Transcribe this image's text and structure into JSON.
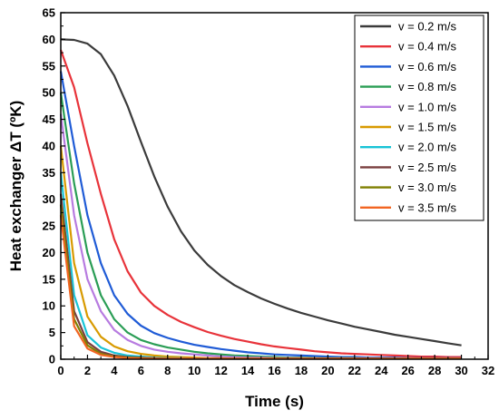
{
  "chart_data": {
    "type": "line",
    "title": "",
    "xlabel": "Time (s)",
    "ylabel": "Heat exchanger ΔT (ºK)",
    "xlim": [
      0,
      32
    ],
    "ylim": [
      0,
      65
    ],
    "x_ticks": [
      0,
      2,
      4,
      6,
      8,
      10,
      12,
      14,
      16,
      18,
      20,
      22,
      24,
      26,
      28,
      30,
      32
    ],
    "y_ticks": [
      0,
      5,
      10,
      15,
      20,
      25,
      30,
      35,
      40,
      45,
      50,
      55,
      60,
      65
    ],
    "grid": false,
    "legend_position": "top-right",
    "x": [
      0,
      1,
      2,
      3,
      4,
      5,
      6,
      7,
      8,
      9,
      10,
      11,
      12,
      13,
      14,
      15,
      16,
      17,
      18,
      19,
      20,
      21,
      22,
      23,
      24,
      25,
      26,
      27,
      28,
      29,
      30
    ],
    "series": [
      {
        "name": "v = 0.2 m/s",
        "color": "#3b3b3b",
        "values": [
          60,
          59.9,
          59.2,
          57.2,
          53.2,
          47.5,
          40.8,
          34.3,
          28.6,
          24.0,
          20.4,
          17.7,
          15.6,
          13.9,
          12.6,
          11.4,
          10.4,
          9.5,
          8.7,
          8.0,
          7.3,
          6.7,
          6.1,
          5.6,
          5.1,
          4.6,
          4.2,
          3.8,
          3.4,
          3.0,
          2.6
        ]
      },
      {
        "name": "v = 0.4 m/s",
        "color": "#e8333a",
        "values": [
          58,
          51,
          40.5,
          31,
          22.5,
          16.5,
          12.5,
          10.0,
          8.3,
          7.0,
          6.0,
          5.1,
          4.4,
          3.8,
          3.3,
          2.8,
          2.4,
          2.1,
          1.8,
          1.5,
          1.3,
          1.1,
          1.0,
          0.9,
          0.8,
          0.7,
          0.6,
          0.5,
          0.5,
          0.4,
          0.4
        ]
      },
      {
        "name": "v = 0.6 m/s",
        "color": "#1f5bd6",
        "values": [
          54,
          40,
          27,
          18,
          12,
          8.5,
          6.3,
          4.9,
          4.0,
          3.3,
          2.7,
          2.3,
          1.9,
          1.6,
          1.3,
          1.1,
          0.9,
          0.8,
          0.7,
          0.6,
          0.5,
          0.4,
          0.4,
          0.3,
          0.3,
          0.3,
          0.2,
          0.2,
          0.2,
          0.2,
          0.2
        ]
      },
      {
        "name": "v = 0.8 m/s",
        "color": "#2a9d55",
        "values": [
          50,
          33,
          20,
          12,
          7.5,
          5.0,
          3.6,
          2.8,
          2.2,
          1.8,
          1.4,
          1.1,
          0.9,
          0.7,
          0.6,
          0.5,
          0.4,
          0.3,
          0.3,
          0.2,
          0.2,
          0.2,
          0.2,
          0.1,
          0.1,
          0.1,
          0.1,
          0.1,
          0.1,
          0.1,
          0.1
        ]
      },
      {
        "name": "v = 1.0 m/s",
        "color": "#b77be0",
        "values": [
          46,
          27,
          15,
          9,
          5.5,
          3.6,
          2.5,
          1.8,
          1.4,
          1.1,
          0.9,
          0.7,
          0.5,
          0.4,
          0.3,
          0.3,
          0.2,
          0.2,
          0.2,
          0.1,
          0.1,
          0.1,
          0.1,
          0.1,
          0.1,
          0.1,
          0.1,
          0.1,
          0.1,
          0.1,
          0.1
        ]
      },
      {
        "name": "v = 1.5 m/s",
        "color": "#d89a00",
        "values": [
          40,
          18,
          8,
          4.2,
          2.4,
          1.5,
          1.0,
          0.7,
          0.5,
          0.4,
          0.3,
          0.2,
          0.2,
          0.1,
          0.1,
          0.1,
          0.1,
          0.1,
          0.1,
          0.1,
          0.1,
          0.1,
          0.1,
          0.1,
          0.1,
          0.1,
          0.1,
          0.1,
          0.1,
          0.1,
          0.1
        ]
      },
      {
        "name": "v = 2.0 m/s",
        "color": "#19c3d6",
        "values": [
          35,
          12,
          4.5,
          2.2,
          1.2,
          0.7,
          0.5,
          0.3,
          0.2,
          0.2,
          0.1,
          0.1,
          0.1,
          0.1,
          0.1,
          0.1,
          0.1,
          0.1,
          0.1,
          0.1,
          0.1,
          0.1,
          0.1,
          0.1,
          0.1,
          0.1,
          0.1,
          0.1,
          0.1,
          0.1,
          0.1
        ]
      },
      {
        "name": "v = 2.5 m/s",
        "color": "#7a3f3f",
        "values": [
          31,
          9,
          3.2,
          1.4,
          0.7,
          0.4,
          0.3,
          0.2,
          0.1,
          0.1,
          0.1,
          0.1,
          0.1,
          0.1,
          0.1,
          0.1,
          0.1,
          0.1,
          0.1,
          0.1,
          0.1,
          0.1,
          0.1,
          0.1,
          0.1,
          0.1,
          0.1,
          0.1,
          0.1,
          0.1,
          0.1
        ]
      },
      {
        "name": "v = 3.0 m/s",
        "color": "#7f7f00",
        "values": [
          29,
          7.5,
          2.6,
          1.0,
          0.5,
          0.3,
          0.2,
          0.1,
          0.1,
          0.1,
          0.1,
          0.1,
          0.1,
          0.1,
          0.1,
          0.1,
          0.1,
          0.1,
          0.1,
          0.1,
          0.1,
          0.1,
          0.1,
          0.1,
          0.1,
          0.1,
          0.1,
          0.1,
          0.1,
          0.1,
          0.1
        ]
      },
      {
        "name": "v = 3.5 m/s",
        "color": "#f26522",
        "values": [
          27,
          6.2,
          2.0,
          0.8,
          0.4,
          0.2,
          0.1,
          0.1,
          0.1,
          0.1,
          0.1,
          0.1,
          0.1,
          0.1,
          0.1,
          0.1,
          0.1,
          0.1,
          0.1,
          0.1,
          0.1,
          0.1,
          0.1,
          0.1,
          0.1,
          0.1,
          0.1,
          0.1,
          0.1,
          0.1,
          0.1
        ]
      }
    ]
  }
}
